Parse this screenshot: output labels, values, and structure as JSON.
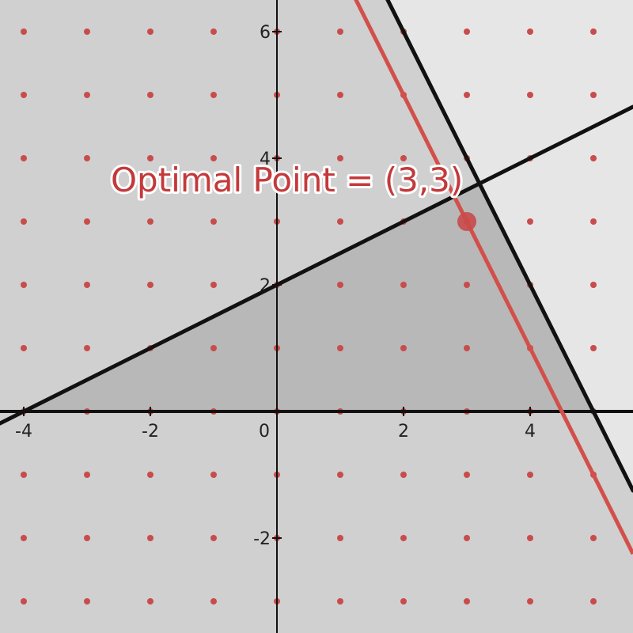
{
  "chart_data": {
    "type": "scatter",
    "title": "",
    "xlabel": "",
    "ylabel": "",
    "xlim": [
      -4.375,
      5.625
    ],
    "ylim": [
      -3.5,
      6.5
    ],
    "grid": false,
    "x_ticks": [
      {
        "value": -4,
        "label": "-4"
      },
      {
        "value": -2,
        "label": "-2"
      },
      {
        "value": 0,
        "label": "0"
      },
      {
        "value": 2,
        "label": "2"
      },
      {
        "value": 4,
        "label": "4"
      }
    ],
    "y_ticks": [
      {
        "value": -2,
        "label": "-2"
      },
      {
        "value": 2,
        "label": "2"
      },
      {
        "value": 4,
        "label": "4"
      },
      {
        "value": 6,
        "label": "6"
      }
    ],
    "lattice": {
      "x_values": [
        -4,
        -3,
        -2,
        -1,
        0,
        1,
        2,
        3,
        4,
        5
      ],
      "y_values": [
        -3,
        -2,
        -1,
        0,
        1,
        2,
        3,
        4,
        5,
        6
      ],
      "color": "#c94c4c"
    },
    "constraint_lines": [
      {
        "equation": "y = x/2 + 2",
        "color": "#111111"
      },
      {
        "equation": "y = -2x + 10",
        "color": "#111111"
      }
    ],
    "objective_line": {
      "equation": "y = -2x + 9",
      "color": "#d34f4a"
    },
    "feasible_region": [
      [
        -4,
        0
      ],
      [
        3.2,
        3.6
      ],
      [
        5,
        0
      ]
    ],
    "optimal_point": {
      "x": 3,
      "y": 3,
      "label": "Optimal Point = (3,3)",
      "color": "#c94a4a"
    },
    "colors": {
      "background": "#d0d0d0",
      "light_region": "#e6e6e6",
      "feasible_region": "#b8b8b8",
      "axes": "#111111"
    }
  }
}
